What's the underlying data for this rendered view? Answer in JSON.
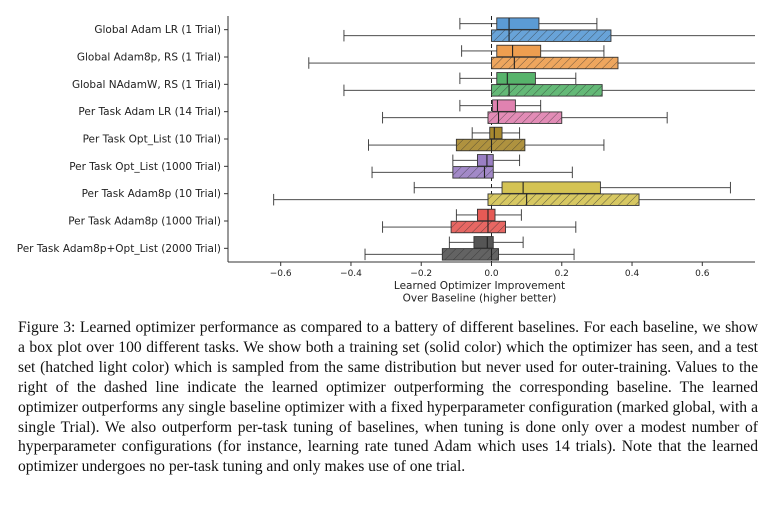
{
  "figure": {
    "caption": "Figure 3: Learned optimizer performance as compared to a battery of different baselines. For each baseline, we show a box plot over 100 different tasks. We show both a training set (solid color) which the optimizer has seen, and a test set (hatched light color) which is sampled from the same distribution but never used for outer-training. Values to the right of the dashed line indicate the learned optimizer outperforming the corresponding baseline. The learned optimizer outperforms any single baseline optimizer with a fixed hyperparameter configuration (marked global, with a single Trial). We also outperform per-task tuning of baselines, when tuning is done only over a modest number of hyperparameter configurations (for instance, learning rate tuned Adam which uses 14 trials). Note that the learned optimizer undergoes no per-task tuning and only makes use of one trial."
  },
  "chart_data": {
    "type": "box",
    "orientation": "horizontal",
    "title": "",
    "xlabel": "Learned Optimizer Improvement\nOver Baseline (higher better)",
    "ylabel": "",
    "xlim": [
      -0.75,
      0.75
    ],
    "xticks": [
      -0.6,
      -0.4,
      -0.2,
      0.0,
      0.2,
      0.4,
      0.6
    ],
    "tick_labels": [
      "−0.6",
      "−0.4",
      "−0.2",
      "0.0",
      "0.2",
      "0.4",
      "0.6"
    ],
    "reference_line": 0.0,
    "categories": [
      "Global Adam LR (1 Trial)",
      "Global Adam8p, RS (1 Trial)",
      "Global NAdamW, RS (1 Trial)",
      "Per Task Adam LR (14 Trial)",
      "Per Task Opt_List (10 Trial)",
      "Per Task Opt_List (1000 Trial)",
      "Per Task Adam8p (10 Trial)",
      "Per Task Adam8p (1000 Trial)",
      "Per Task Adam8p+Opt_List (2000 Trial)"
    ],
    "colors": [
      "#5b9bd5",
      "#ed9e50",
      "#57b36b",
      "#e082b0",
      "#a8892e",
      "#9a7fc3",
      "#d4c354",
      "#e55a55",
      "#555555"
    ],
    "series": [
      {
        "name": "train",
        "style": "solid",
        "boxes": [
          {
            "whislo": -0.09,
            "q1": 0.015,
            "med": 0.05,
            "q3": 0.135,
            "whishi": 0.3
          },
          {
            "whislo": -0.085,
            "q1": 0.015,
            "med": 0.06,
            "q3": 0.14,
            "whishi": 0.32
          },
          {
            "whislo": -0.09,
            "q1": 0.015,
            "med": 0.045,
            "q3": 0.125,
            "whishi": 0.24
          },
          {
            "whislo": -0.09,
            "q1": 0.003,
            "med": 0.017,
            "q3": 0.068,
            "whishi": 0.14
          },
          {
            "whislo": -0.055,
            "q1": -0.005,
            "med": 0.008,
            "q3": 0.03,
            "whishi": 0.08
          },
          {
            "whislo": -0.11,
            "q1": -0.04,
            "med": -0.013,
            "q3": 0.005,
            "whishi": 0.08
          },
          {
            "whislo": -0.22,
            "q1": 0.03,
            "med": 0.09,
            "q3": 0.31,
            "whishi": 0.68
          },
          {
            "whislo": -0.1,
            "q1": -0.04,
            "med": -0.01,
            "q3": 0.01,
            "whishi": 0.085
          },
          {
            "whislo": -0.12,
            "q1": -0.05,
            "med": -0.012,
            "q3": 0.005,
            "whishi": 0.09
          }
        ]
      },
      {
        "name": "test",
        "style": "hatched",
        "boxes": [
          {
            "whislo": -0.42,
            "q1": 0.0,
            "med": 0.05,
            "q3": 0.34,
            "whishi": 0.75
          },
          {
            "whislo": -0.52,
            "q1": 0.0,
            "med": 0.065,
            "q3": 0.36,
            "whishi": 0.75
          },
          {
            "whislo": -0.42,
            "q1": 0.0,
            "med": 0.05,
            "q3": 0.315,
            "whishi": 0.75
          },
          {
            "whislo": -0.31,
            "q1": -0.01,
            "med": 0.02,
            "q3": 0.2,
            "whishi": 0.5
          },
          {
            "whislo": -0.35,
            "q1": -0.1,
            "med": 0.0,
            "q3": 0.095,
            "whishi": 0.32
          },
          {
            "whislo": -0.34,
            "q1": -0.11,
            "med": -0.02,
            "q3": 0.005,
            "whishi": 0.23
          },
          {
            "whislo": -0.62,
            "q1": -0.01,
            "med": 0.1,
            "q3": 0.42,
            "whishi": 0.75
          },
          {
            "whislo": -0.31,
            "q1": -0.115,
            "med": -0.01,
            "q3": 0.04,
            "whishi": 0.24
          },
          {
            "whislo": -0.36,
            "q1": -0.14,
            "med": 0.0,
            "q3": 0.02,
            "whishi": 0.235
          }
        ]
      }
    ]
  }
}
